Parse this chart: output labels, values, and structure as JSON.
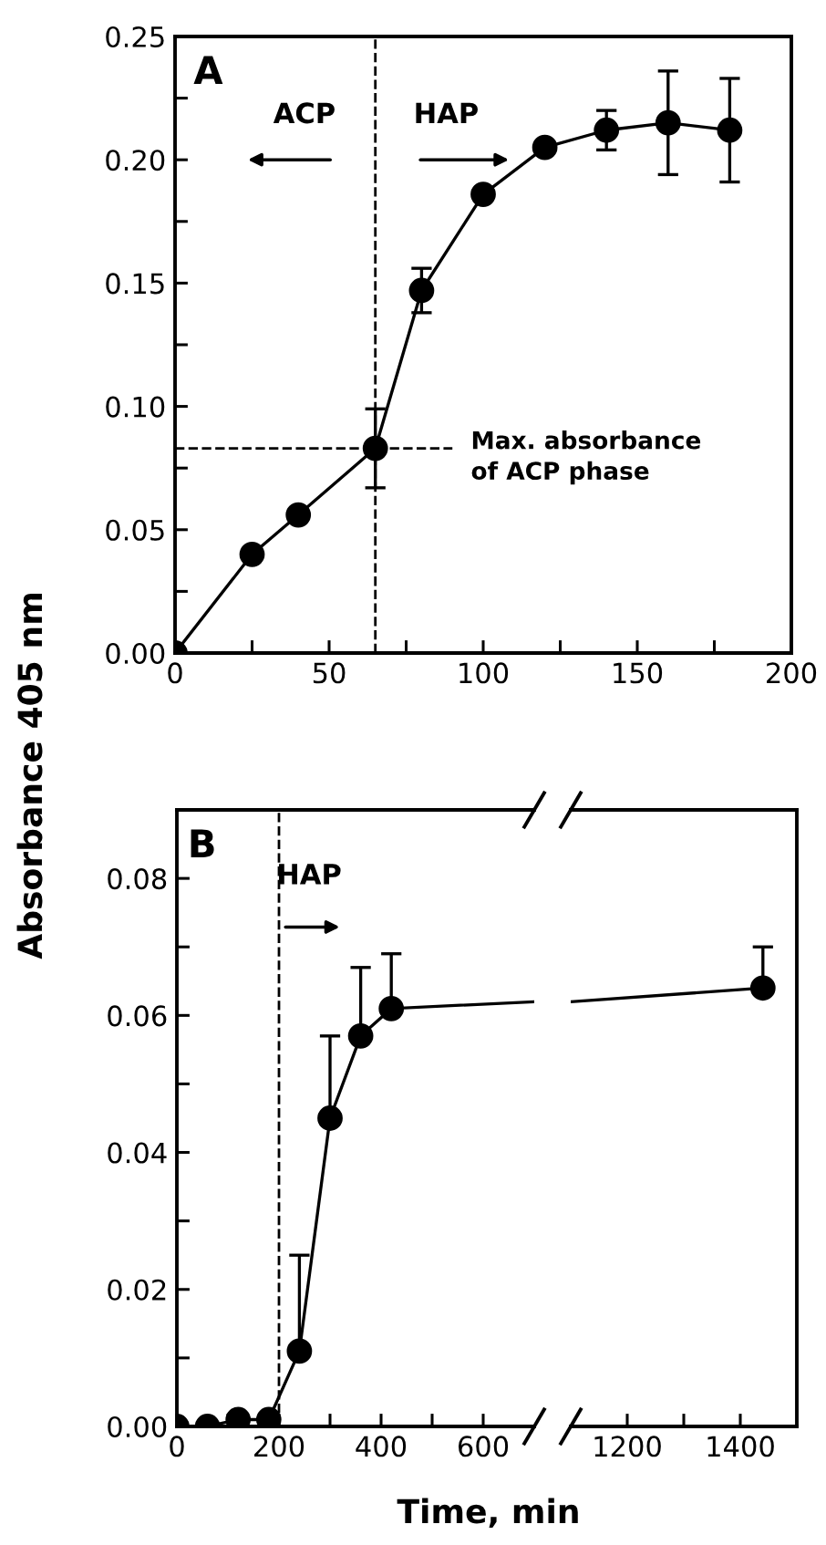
{
  "chart_data": [
    {
      "type": "line",
      "title": "A",
      "ylabel": "Absorbance 405 nm",
      "marker": "circle",
      "line_style": "solid",
      "x": [
        0,
        25,
        40,
        65,
        80,
        100,
        120,
        140,
        160,
        180
      ],
      "series": [
        {
          "color": "#000000",
          "values": [
            0,
            0.04,
            0.056,
            0.083,
            0.147,
            0.186,
            0.205,
            0.212,
            0.215,
            0.212
          ],
          "errors": [
            null,
            null,
            null,
            [
              0.067,
              0.099
            ],
            [
              0.138,
              0.156
            ],
            null,
            null,
            [
              0.204,
              0.22
            ],
            [
              0.194,
              0.236
            ],
            [
              0.191,
              0.233
            ]
          ]
        }
      ],
      "xlim": [
        0,
        200
      ],
      "xticks": [
        0,
        {
          "value": 25,
          "label": null
        },
        50,
        {
          "value": 75,
          "label": null
        },
        100,
        {
          "value": 125,
          "label": null
        },
        150,
        {
          "value": 175,
          "label": null
        },
        200
      ],
      "ylim": [
        0,
        0.25
      ],
      "yticks": [
        {
          "value": 0,
          "label": "0.00"
        },
        {
          "value": 0.025,
          "label": null
        },
        0.05,
        {
          "value": 0.075,
          "label": null
        },
        {
          "value": 0.1,
          "label": "0.10"
        },
        {
          "value": 0.125,
          "label": null
        },
        0.15,
        {
          "value": 0.175,
          "label": null
        },
        {
          "value": 0.2,
          "label": "0.20"
        },
        {
          "value": 0.225,
          "label": null
        },
        0.25
      ],
      "ref_lines": [
        {
          "axis": "x",
          "value": 65,
          "color": "#000000",
          "line_style": "dashed"
        },
        {
          "axis": "y",
          "value": 0.083,
          "label": "Max. absorbance\nof ACP phase",
          "color": "#000000",
          "line_style": "dashed"
        }
      ],
      "annotations": [
        "ACP",
        "HAP"
      ]
    },
    {
      "type": "line",
      "title": "B",
      "xlabel": "Time, min",
      "marker": "circle",
      "line_style": "solid",
      "x": [
        0,
        60,
        120,
        180,
        240,
        300,
        360,
        420
      ],
      "series": [
        {
          "color": "#000000",
          "values": [
            0,
            0,
            0.001,
            0.001,
            0.011,
            0.045,
            0.057,
            0.061
          ],
          "errors": [
            null,
            null,
            null,
            null,
            [
              0.011,
              0.025
            ],
            [
              0.045,
              0.057
            ],
            [
              0.057,
              0.067
            ],
            [
              0.061,
              0.069
            ]
          ]
        },
        {
          "color": "#000000",
          "marker": "none",
          "x": [
            420,
            700
          ],
          "values": [
            0.061,
            0.062
          ]
        }
      ],
      "xlim": [
        0,
        700
      ],
      "xticks": [
        0,
        {
          "value": 100,
          "label": null
        },
        200,
        {
          "value": 300,
          "label": null
        },
        400,
        {
          "value": 500,
          "label": null
        },
        600
      ],
      "ylim": [
        0,
        0.09
      ],
      "yticks": [
        {
          "value": 0,
          "label": "0.00"
        },
        {
          "value": 0.01,
          "label": null
        },
        0.02,
        {
          "value": 0.03,
          "label": null
        },
        0.04,
        {
          "value": 0.05,
          "label": null
        },
        0.06,
        {
          "value": 0.07,
          "label": null
        },
        0.08
      ],
      "ref_lines": [
        {
          "axis": "x",
          "value": 200,
          "color": "#000000",
          "line_style": "dashed"
        }
      ],
      "annotations": [
        "HAP"
      ]
    },
    {
      "type": "line",
      "marker": "circle",
      "line_style": "solid",
      "tick_labels": "x",
      "x": [
        1440
      ],
      "series": [
        {
          "color": "#000000",
          "values": [
            0.064
          ],
          "errors": [
            [
              0.064,
              0.07
            ]
          ]
        },
        {
          "color": "#000000",
          "marker": "none",
          "x": [
            1100,
            1440
          ],
          "values": [
            0.062,
            0.064
          ]
        }
      ],
      "xlim": [
        1100,
        1500
      ],
      "xticks": [
        {
          "value": 1200,
          "label": "1200"
        },
        {
          "value": 1300,
          "label": null
        },
        {
          "value": 1400,
          "label": "1400"
        }
      ],
      "ylim": [
        0,
        0.09
      ]
    }
  ]
}
